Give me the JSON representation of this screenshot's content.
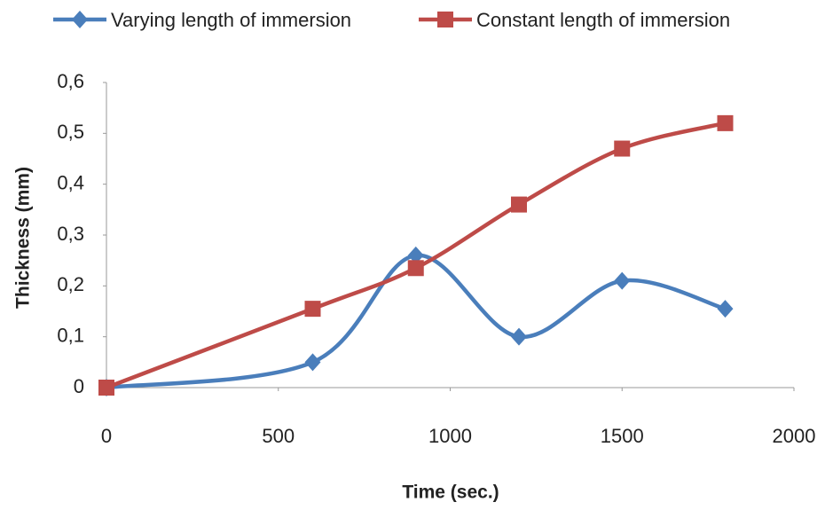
{
  "chart_data": {
    "type": "line",
    "x_label": "Time (sec.)",
    "y_label": "Thickness (mm)",
    "x": [
      0,
      600,
      900,
      1200,
      1500,
      1800
    ],
    "series": [
      {
        "name": "Varying length of immersion",
        "color": "#4a7ebb",
        "marker": "diamond",
        "values": [
          0,
          0.05,
          0.26,
          0.1,
          0.21,
          0.155
        ]
      },
      {
        "name": "Constant length of immersion",
        "color": "#be4b48",
        "marker": "square",
        "values": [
          0,
          0.155,
          0.235,
          0.36,
          0.47,
          0.52
        ]
      }
    ],
    "xlim": [
      0,
      2000
    ],
    "xticks": [
      0,
      500,
      1000,
      1500,
      2000
    ],
    "ylim": [
      0,
      0.6
    ],
    "yticks": [
      0,
      {
        "value": 0.1,
        "label": "0,1"
      },
      {
        "value": 0.2,
        "label": "0,2"
      },
      {
        "value": 0.3,
        "label": "0,3"
      },
      {
        "value": 0.4,
        "label": "0,4"
      },
      {
        "value": 0.5,
        "label": "0,5"
      },
      {
        "value": 0.6,
        "label": "0,6"
      }
    ],
    "smooth": true,
    "grid": false,
    "legend": "top"
  }
}
